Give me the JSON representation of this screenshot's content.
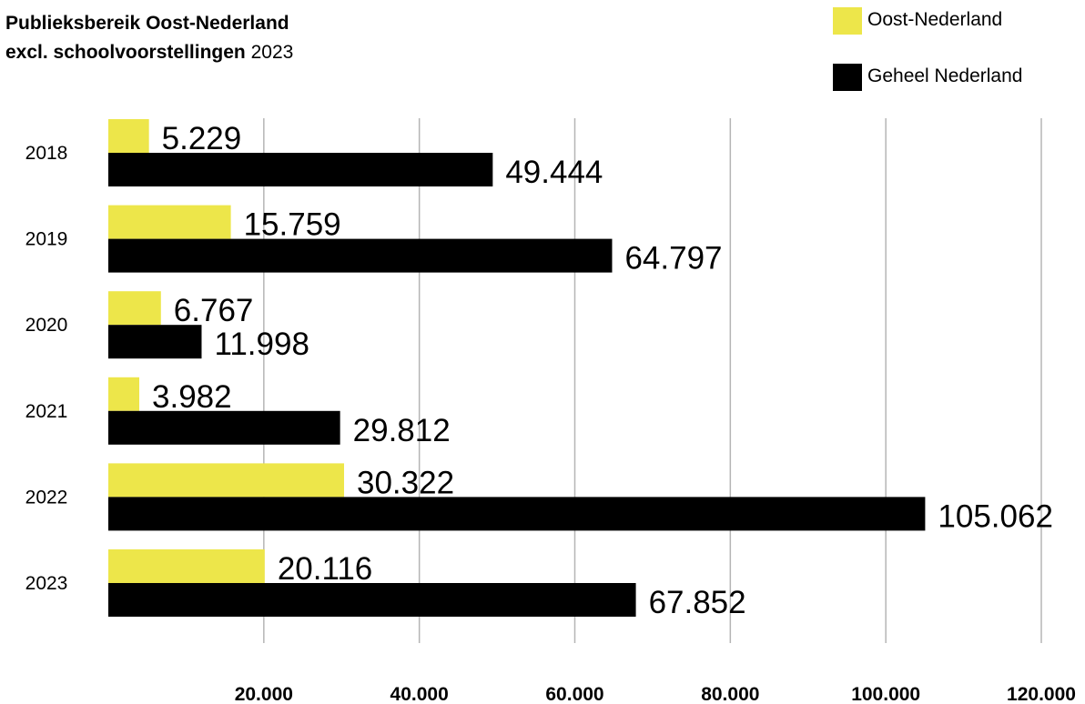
{
  "chart_data": {
    "type": "bar",
    "orientation": "horizontal",
    "title": "Publieksbereik Oost-Nederland",
    "subtitle_bold": "excl. schoolvoorstellingen",
    "subtitle_year": "2023",
    "categories": [
      "2018",
      "2019",
      "2020",
      "2021",
      "2022",
      "2023"
    ],
    "series": [
      {
        "name": "Oost-Nederland",
        "color": "#ede64a",
        "values": [
          5229,
          15759,
          6767,
          3982,
          30322,
          20116
        ],
        "labels": [
          "5.229",
          "15.759",
          "6.767",
          "3.982",
          "30.322",
          "20.116"
        ]
      },
      {
        "name": "Geheel Nederland",
        "color": "#000000",
        "values": [
          49444,
          64797,
          11998,
          29812,
          105062,
          67852
        ],
        "labels": [
          "49.444",
          "64.797",
          "11.998",
          "29.812",
          "105.062",
          "67.852"
        ]
      }
    ],
    "xlim": [
      0,
      120000
    ],
    "xticks": [
      20000,
      40000,
      60000,
      80000,
      100000,
      120000
    ],
    "xtick_labels": [
      "20.000",
      "40.000",
      "60.000",
      "80.000",
      "100.000",
      "120.000"
    ],
    "grid": "vertical",
    "legend_position": "top-right"
  }
}
